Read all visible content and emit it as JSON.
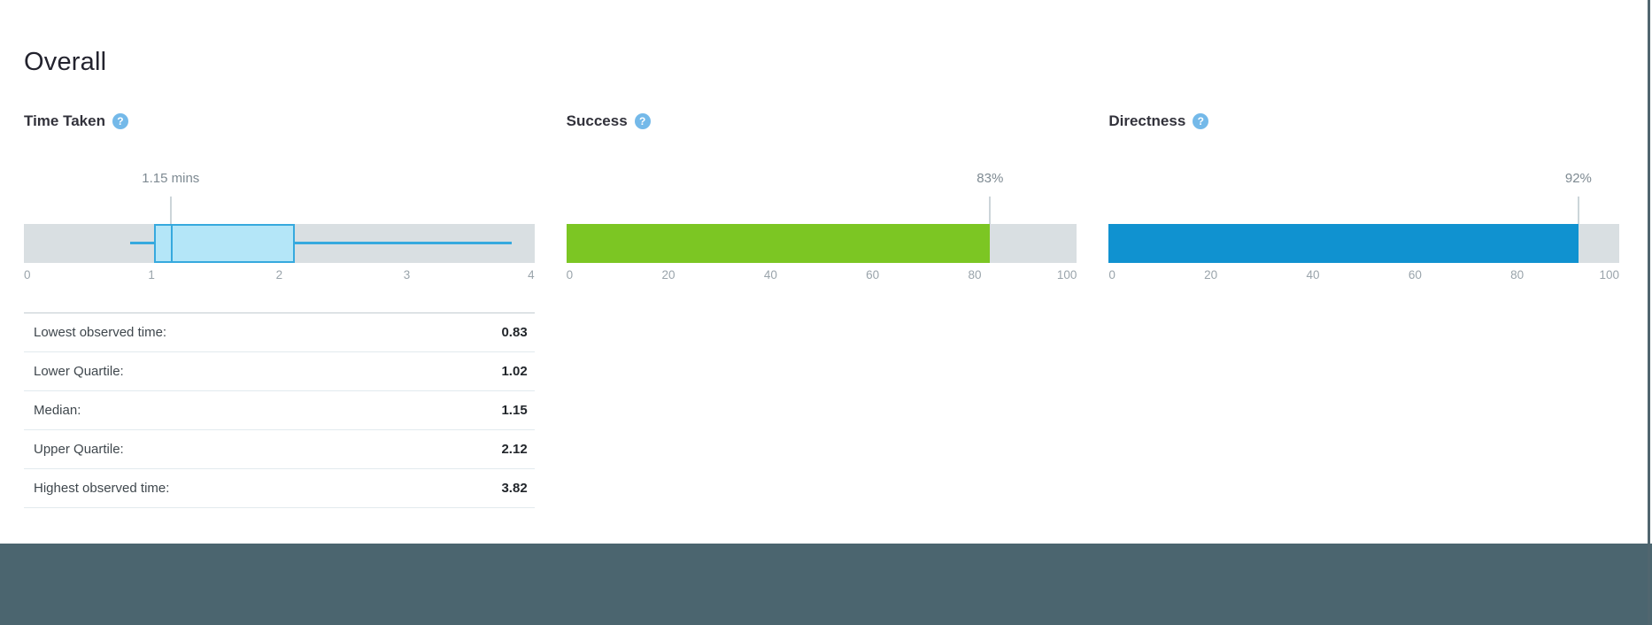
{
  "page": {
    "heading": "Overall"
  },
  "colors": {
    "track": "#d9dfe2",
    "success_bar": "#7cc623",
    "directness_bar": "#1092d0",
    "box_fill": "#b4e6f8",
    "box_border": "#36a9de",
    "marker_line": "#ccd5d9",
    "help_icon": "#74b9e9",
    "footer_band": "#4b656f",
    "window_edge": "#50666f"
  },
  "panels": [
    {
      "title": "Time Taken",
      "help_glyph": "?",
      "marker_label": "1.15 mins"
    },
    {
      "title": "Success",
      "help_glyph": "?",
      "marker_label": "83%"
    },
    {
      "title": "Directness",
      "help_glyph": "?",
      "marker_label": "92%"
    }
  ],
  "stats_table": {
    "rows": [
      {
        "label": "Lowest observed time:",
        "value": "0.83"
      },
      {
        "label": "Lower Quartile:",
        "value": "1.02"
      },
      {
        "label": "Median:",
        "value": "1.15"
      },
      {
        "label": "Upper Quartile:",
        "value": "2.12"
      },
      {
        "label": "Highest observed time:",
        "value": "3.82"
      }
    ]
  },
  "chart_data": [
    {
      "type": "box",
      "title": "Time Taken",
      "unit": "mins",
      "xlim": [
        0,
        4
      ],
      "tick_labels": [
        "0",
        "1",
        "2",
        "3",
        "4"
      ],
      "values": {
        "low": 0.83,
        "q1": 1.02,
        "median": 1.15,
        "q3": 2.12,
        "high": 3.82
      },
      "annotation": "1.15 mins",
      "annotation_at": 1.15
    },
    {
      "type": "bar",
      "title": "Success",
      "value": 83,
      "xlim": [
        0,
        100
      ],
      "tick_labels": [
        "0",
        "20",
        "40",
        "60",
        "80",
        "100"
      ],
      "annotation": "83%",
      "annotation_at": 83
    },
    {
      "type": "bar",
      "title": "Directness",
      "value": 92,
      "xlim": [
        0,
        100
      ],
      "tick_labels": [
        "0",
        "20",
        "40",
        "60",
        "80",
        "100"
      ],
      "annotation": "92%",
      "annotation_at": 92
    }
  ]
}
